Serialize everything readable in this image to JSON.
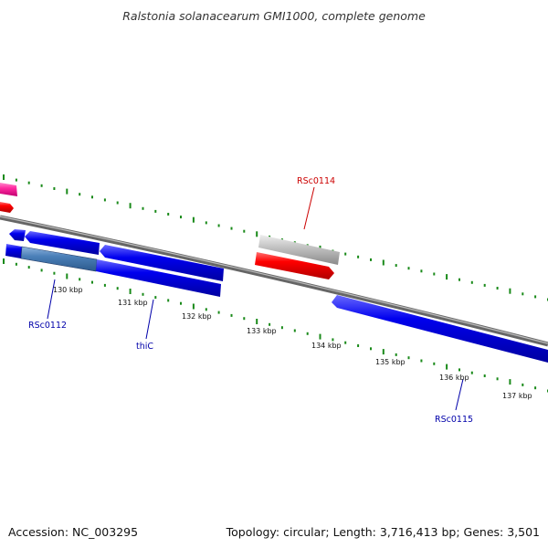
{
  "title": "Ralstonia solanacearum GMI1000, complete genome",
  "footer": {
    "accession": "Accession: NC_003295",
    "summary": "Topology: circular; Length: 3,716,413 bp; Genes: 3,501"
  },
  "ticks": [
    "130 kbp",
    "131 kbp",
    "132 kbp",
    "133 kbp",
    "134 kbp",
    "135 kbp",
    "136 kbp",
    "137 kbp"
  ],
  "gene_labels": [
    {
      "id": "RSc0114",
      "color": "#cc0000"
    },
    {
      "id": "RSc0112",
      "color": "#0000aa"
    },
    {
      "id": "thiC",
      "color": "#0000aa"
    },
    {
      "id": "RSc0115",
      "color": "#0000aa"
    }
  ],
  "colors": {
    "cds_forward": "#ff0000",
    "cds_reverse": "#0000ee",
    "pseudo": "#c0c0c0",
    "highlight": "#4a7fb8",
    "magenta": "#ff2aa0",
    "backbone": "#777777",
    "tick_marks": "#1a8a1a"
  }
}
